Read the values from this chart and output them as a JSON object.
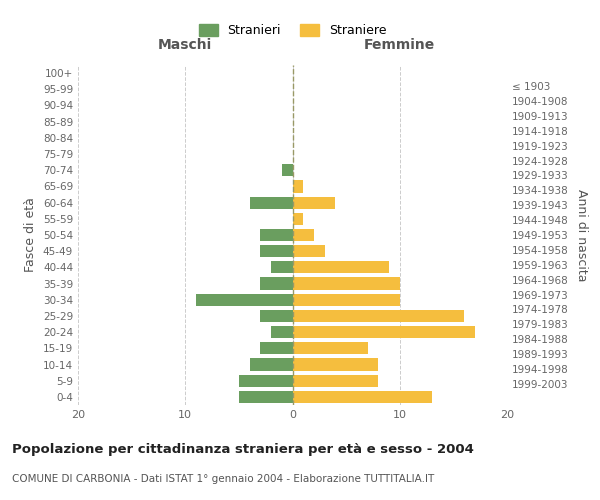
{
  "age_groups": [
    "0-4",
    "5-9",
    "10-14",
    "15-19",
    "20-24",
    "25-29",
    "30-34",
    "35-39",
    "40-44",
    "45-49",
    "50-54",
    "55-59",
    "60-64",
    "65-69",
    "70-74",
    "75-79",
    "80-84",
    "85-89",
    "90-94",
    "95-99",
    "100+"
  ],
  "birth_years": [
    "1999-2003",
    "1994-1998",
    "1989-1993",
    "1984-1988",
    "1979-1983",
    "1974-1978",
    "1969-1973",
    "1964-1968",
    "1959-1963",
    "1954-1958",
    "1949-1953",
    "1944-1948",
    "1939-1943",
    "1934-1938",
    "1929-1933",
    "1924-1928",
    "1919-1923",
    "1914-1918",
    "1909-1913",
    "1904-1908",
    "≤ 1903"
  ],
  "maschi": [
    5,
    5,
    4,
    3,
    2,
    3,
    9,
    3,
    2,
    3,
    3,
    0,
    4,
    0,
    1,
    0,
    0,
    0,
    0,
    0,
    0
  ],
  "femmine": [
    13,
    8,
    8,
    7,
    17,
    16,
    10,
    10,
    9,
    3,
    2,
    1,
    4,
    1,
    0,
    0,
    0,
    0,
    0,
    0,
    0
  ],
  "color_maschi": "#6a9e5f",
  "color_femmine": "#f5be3e",
  "title": "Popolazione per cittadinanza straniera per età e sesso - 2004",
  "subtitle": "COMUNE DI CARBONIA - Dati ISTAT 1° gennaio 2004 - Elaborazione TUTTITALIA.IT",
  "ylabel_left": "Fasce di età",
  "ylabel_right": "Anni di nascita",
  "xlabel_left": "Maschi",
  "xlabel_right": "Femmine",
  "xlim": 20,
  "legend_stranieri": "Stranieri",
  "legend_straniere": "Straniere",
  "background_color": "#ffffff",
  "grid_color": "#cccccc"
}
